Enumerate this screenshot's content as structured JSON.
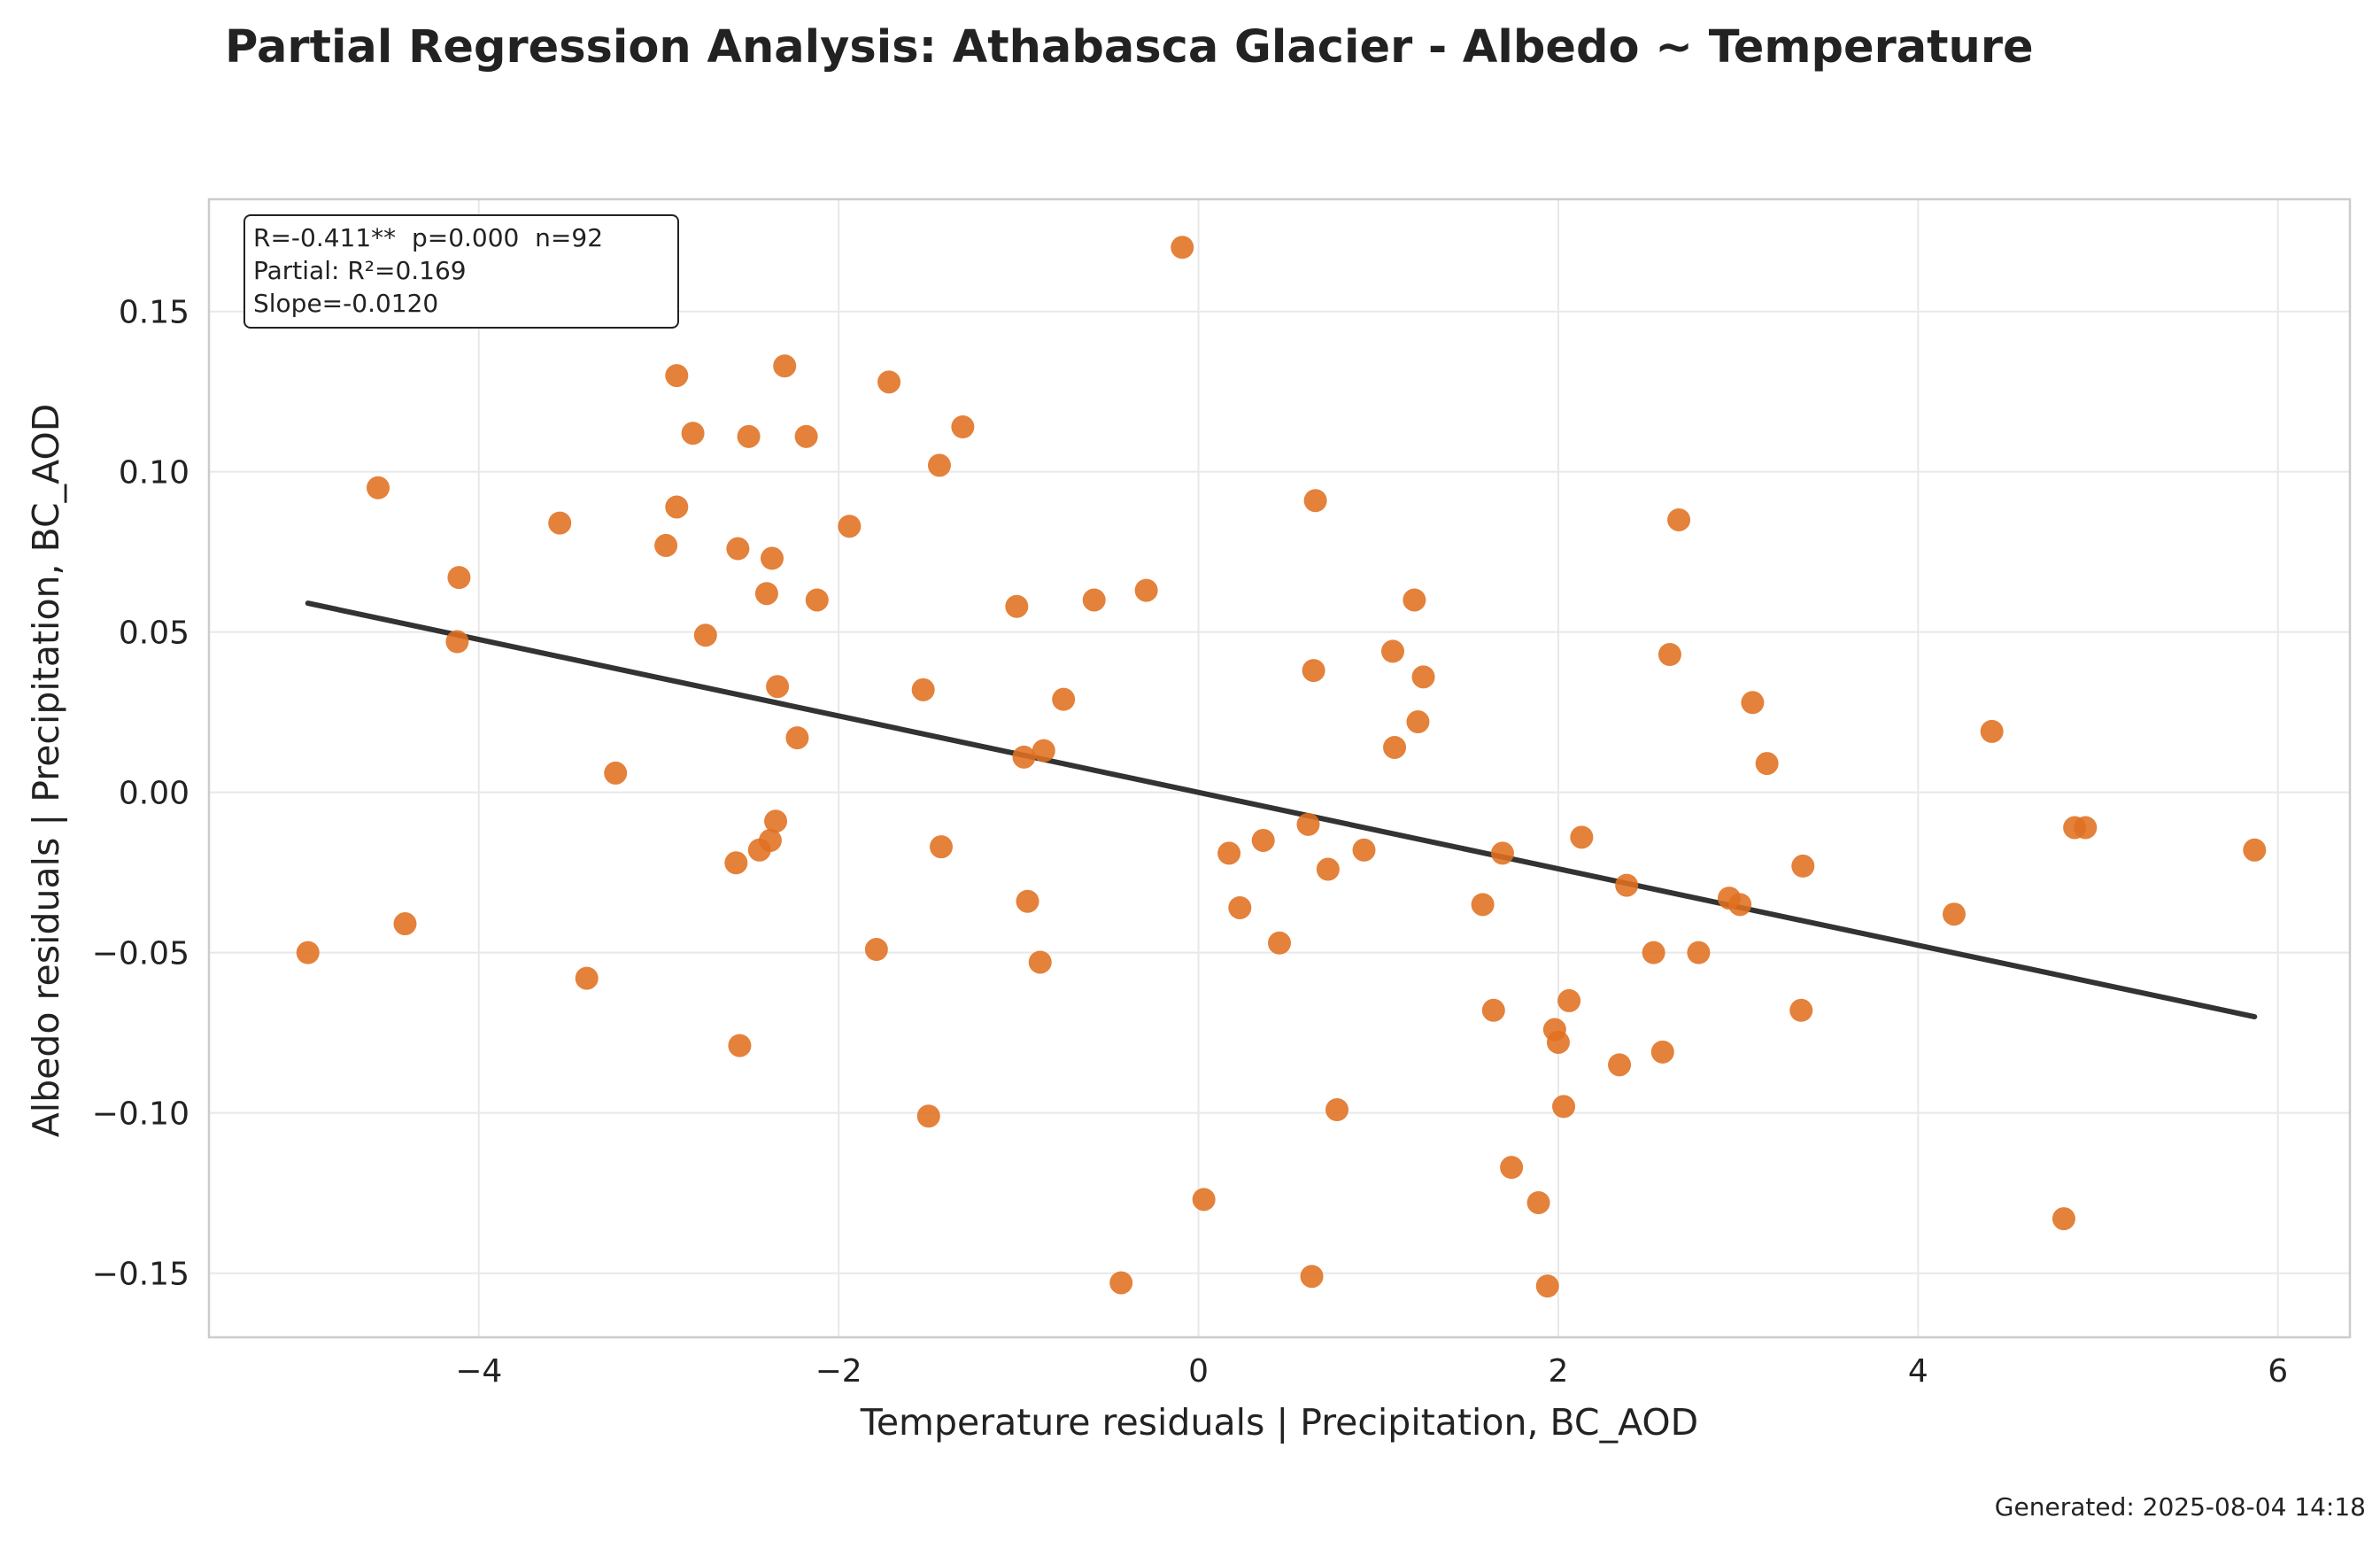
{
  "chart_data": {
    "type": "scatter",
    "title": "Partial Regression Analysis: Athabasca Glacier - Albedo ~ Temperature",
    "xlabel": "Temperature residuals | Precipitation, BC_AOD",
    "ylabel": "Albedo residuals | Precipitation, BC_AOD",
    "xlim": [
      -5.5,
      6.4
    ],
    "ylim": [
      -0.17,
      0.185
    ],
    "xticks": [
      -4,
      -2,
      0,
      2,
      4,
      6
    ],
    "xtick_labels": [
      "−4",
      "−2",
      "0",
      "2",
      "4",
      "6"
    ],
    "yticks": [
      -0.15,
      -0.1,
      -0.05,
      0.0,
      0.05,
      0.1,
      0.15
    ],
    "ytick_labels": [
      "−0.15",
      "−0.10",
      "−0.05",
      "0.00",
      "0.05",
      "0.10",
      "0.15"
    ],
    "grid": true,
    "point_color": "#e07020",
    "line_color": "#333333",
    "stats_lines": [
      "R=-0.411**  p=0.000  n=92",
      "Partial: R²=0.169",
      "Slope=-0.0120"
    ],
    "regression_line": {
      "x": [
        -4.95,
        5.87
      ],
      "y": [
        0.059,
        -0.07
      ]
    },
    "points": [
      {
        "x": -4.95,
        "y": -0.05
      },
      {
        "x": -4.56,
        "y": 0.095
      },
      {
        "x": -4.41,
        "y": -0.041
      },
      {
        "x": -4.11,
        "y": 0.067
      },
      {
        "x": -4.12,
        "y": 0.047
      },
      {
        "x": -3.55,
        "y": 0.084
      },
      {
        "x": -3.4,
        "y": -0.058
      },
      {
        "x": -3.24,
        "y": 0.006
      },
      {
        "x": -2.96,
        "y": 0.077
      },
      {
        "x": -2.9,
        "y": 0.089
      },
      {
        "x": -2.9,
        "y": 0.13
      },
      {
        "x": -2.81,
        "y": 0.112
      },
      {
        "x": -2.74,
        "y": 0.049
      },
      {
        "x": -2.57,
        "y": -0.022
      },
      {
        "x": -2.56,
        "y": 0.076
      },
      {
        "x": -2.55,
        "y": -0.079
      },
      {
        "x": -2.5,
        "y": 0.111
      },
      {
        "x": -2.44,
        "y": -0.018
      },
      {
        "x": -2.4,
        "y": 0.062
      },
      {
        "x": -2.38,
        "y": -0.015
      },
      {
        "x": -2.37,
        "y": 0.073
      },
      {
        "x": -2.35,
        "y": -0.009
      },
      {
        "x": -2.34,
        "y": 0.033
      },
      {
        "x": -2.3,
        "y": 0.133
      },
      {
        "x": -2.23,
        "y": 0.017
      },
      {
        "x": -2.18,
        "y": 0.111
      },
      {
        "x": -2.12,
        "y": 0.06
      },
      {
        "x": -1.94,
        "y": 0.083
      },
      {
        "x": -1.79,
        "y": -0.049
      },
      {
        "x": -1.72,
        "y": 0.128
      },
      {
        "x": -1.53,
        "y": 0.032
      },
      {
        "x": -1.5,
        "y": -0.101
      },
      {
        "x": -1.44,
        "y": 0.102
      },
      {
        "x": -1.43,
        "y": -0.017
      },
      {
        "x": -1.31,
        "y": 0.114
      },
      {
        "x": -1.01,
        "y": 0.058
      },
      {
        "x": -0.97,
        "y": 0.011
      },
      {
        "x": -0.95,
        "y": -0.034
      },
      {
        "x": -0.88,
        "y": -0.053
      },
      {
        "x": -0.86,
        "y": 0.013
      },
      {
        "x": -0.75,
        "y": 0.029
      },
      {
        "x": -0.58,
        "y": 0.06
      },
      {
        "x": -0.43,
        "y": -0.153
      },
      {
        "x": -0.29,
        "y": 0.063
      },
      {
        "x": -0.09,
        "y": 0.17
      },
      {
        "x": 0.03,
        "y": -0.127
      },
      {
        "x": 0.17,
        "y": -0.019
      },
      {
        "x": 0.23,
        "y": -0.036
      },
      {
        "x": 0.36,
        "y": -0.015
      },
      {
        "x": 0.45,
        "y": -0.047
      },
      {
        "x": 0.61,
        "y": -0.01
      },
      {
        "x": 0.63,
        "y": -0.151
      },
      {
        "x": 0.64,
        "y": 0.038
      },
      {
        "x": 0.65,
        "y": 0.091
      },
      {
        "x": 0.72,
        "y": -0.024
      },
      {
        "x": 0.77,
        "y": -0.099
      },
      {
        "x": 0.92,
        "y": -0.018
      },
      {
        "x": 1.08,
        "y": 0.044
      },
      {
        "x": 1.09,
        "y": 0.014
      },
      {
        "x": 1.2,
        "y": 0.06
      },
      {
        "x": 1.22,
        "y": 0.022
      },
      {
        "x": 1.25,
        "y": 0.036
      },
      {
        "x": 1.58,
        "y": -0.035
      },
      {
        "x": 1.64,
        "y": -0.068
      },
      {
        "x": 1.69,
        "y": -0.019
      },
      {
        "x": 1.74,
        "y": -0.117
      },
      {
        "x": 1.89,
        "y": -0.128
      },
      {
        "x": 1.94,
        "y": -0.154
      },
      {
        "x": 1.98,
        "y": -0.074
      },
      {
        "x": 2.0,
        "y": -0.078
      },
      {
        "x": 2.03,
        "y": -0.098
      },
      {
        "x": 2.06,
        "y": -0.065
      },
      {
        "x": 2.13,
        "y": -0.014
      },
      {
        "x": 2.34,
        "y": -0.085
      },
      {
        "x": 2.38,
        "y": -0.029
      },
      {
        "x": 2.53,
        "y": -0.05
      },
      {
        "x": 2.58,
        "y": -0.081
      },
      {
        "x": 2.62,
        "y": 0.043
      },
      {
        "x": 2.67,
        "y": 0.085
      },
      {
        "x": 2.78,
        "y": -0.05
      },
      {
        "x": 2.95,
        "y": -0.033
      },
      {
        "x": 3.01,
        "y": -0.035
      },
      {
        "x": 3.08,
        "y": 0.028
      },
      {
        "x": 3.16,
        "y": 0.009
      },
      {
        "x": 3.35,
        "y": -0.068
      },
      {
        "x": 3.36,
        "y": -0.023
      },
      {
        "x": 4.2,
        "y": -0.038
      },
      {
        "x": 4.41,
        "y": 0.019
      },
      {
        "x": 4.81,
        "y": -0.133
      },
      {
        "x": 4.87,
        "y": -0.011
      },
      {
        "x": 4.93,
        "y": -0.011
      },
      {
        "x": 5.87,
        "y": -0.018
      }
    ]
  },
  "footer": "Generated: 2025-08-04 14:18"
}
